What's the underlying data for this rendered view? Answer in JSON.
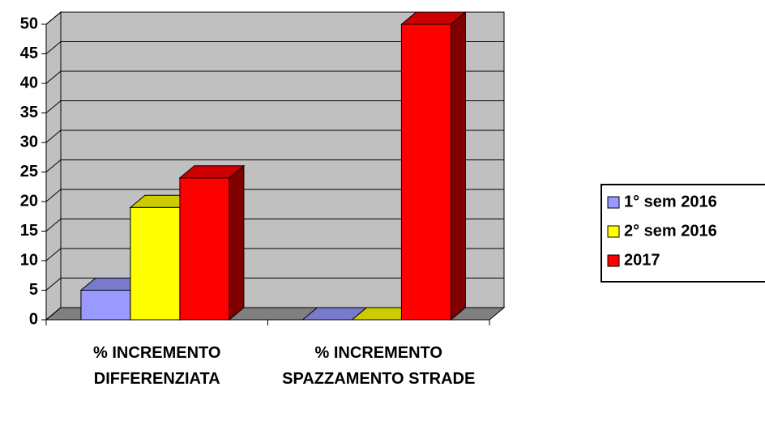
{
  "chart_data": {
    "type": "bar3d",
    "categories": [
      "% INCREMENTO DIFFERENZIATA",
      "% INCREMENTO SPAZZAMENTO STRADE"
    ],
    "series": [
      {
        "name": "1° sem 2016",
        "color": "#9999ff",
        "values": [
          5,
          0
        ]
      },
      {
        "name": "2° sem 2016",
        "color": "#ffff00",
        "values": [
          19,
          0
        ]
      },
      {
        "name": "2017",
        "color": "#ff0000",
        "values": [
          24,
          50
        ]
      }
    ],
    "ylim": [
      0,
      50
    ],
    "yticks": [
      0,
      5,
      10,
      15,
      20,
      25,
      30,
      35,
      40,
      45,
      50
    ],
    "grid": true,
    "legend": "right"
  }
}
